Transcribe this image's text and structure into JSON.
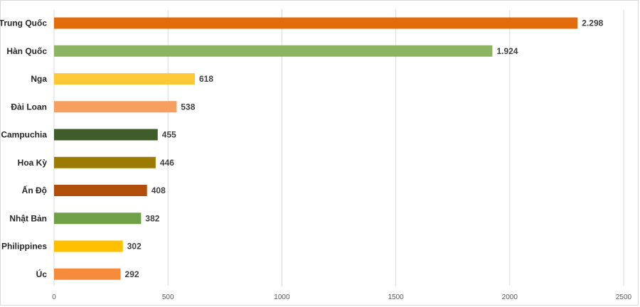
{
  "chart_data": {
    "type": "bar",
    "orientation": "horizontal",
    "categories": [
      "Trung Quốc",
      "Hàn Quốc",
      "Nga",
      "Đài Loan",
      "Campuchia",
      "Hoa Kỳ",
      "Ấn Độ",
      "Nhật Bản",
      "Philippines",
      "Úc"
    ],
    "values": [
      2298,
      1924,
      618,
      538,
      455,
      446,
      408,
      382,
      302,
      292
    ],
    "value_labels": [
      "2.298",
      "1.924",
      "618",
      "538",
      "455",
      "446",
      "408",
      "382",
      "302",
      "292"
    ],
    "bar_colors": [
      "#e36c0a",
      "#8db463",
      "#ffc836",
      "#f79f5f",
      "#3f5c2a",
      "#9c7b04",
      "#b04e0c",
      "#70a045",
      "#ffc000",
      "#f58b3b"
    ],
    "xlim": [
      0,
      2500
    ],
    "x_ticks": [
      "0",
      "500",
      "1000",
      "1500",
      "2000",
      "2500"
    ],
    "x_tick_values": [
      0,
      500,
      1000,
      1500,
      2000,
      2500
    ],
    "grid": true,
    "legend": "none",
    "title": "",
    "xlabel": "",
    "ylabel": ""
  }
}
